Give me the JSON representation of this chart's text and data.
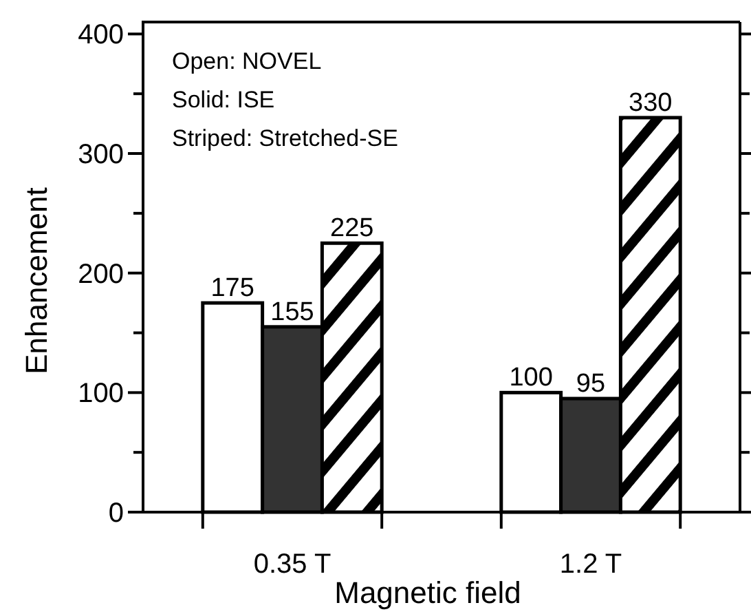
{
  "chart_data": {
    "type": "bar",
    "xlabel": "Magnetic field",
    "ylabel": "Enhancement",
    "categories": [
      "0.35 T",
      "1.2 T"
    ],
    "series": [
      {
        "color": "#ffffff",
        "values": [
          175,
          100
        ]
      },
      {
        "color": "#333333",
        "values": [
          155,
          95
        ]
      },
      {
        "color": "#000000",
        "values": [
          225,
          330
        ]
      }
    ],
    "ylim": [
      0,
      410
    ],
    "yticks": [
      0,
      {
        "value": 50,
        "label": null
      },
      100,
      {
        "value": 150,
        "label": null
      },
      200,
      {
        "value": 250,
        "label": null
      },
      300,
      {
        "value": 350,
        "label": null
      },
      400
    ],
    "data_labels": true,
    "grid": false,
    "annotations": [
      "Open: NOVEL",
      "Solid: ISE",
      "Striped: Stretched-SE"
    ]
  }
}
